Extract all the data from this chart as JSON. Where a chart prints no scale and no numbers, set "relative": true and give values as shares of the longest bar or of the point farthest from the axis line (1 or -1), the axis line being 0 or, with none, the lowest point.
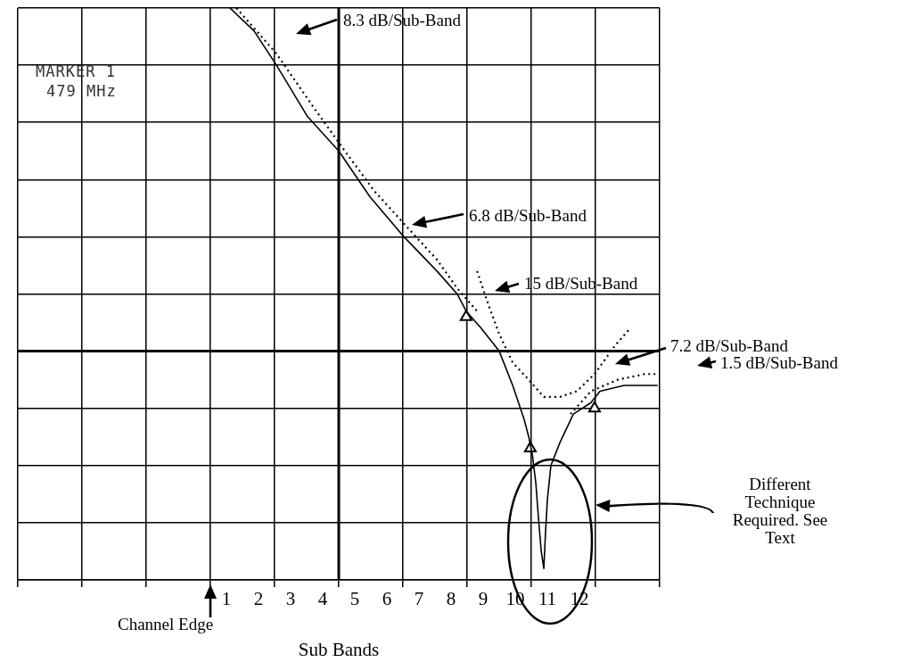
{
  "chart_data": {
    "type": "line",
    "relative": true,
    "xlabel": "Sub Bands",
    "xlim": [
      -6,
      14
    ],
    "xticks": [
      {
        "value": -6,
        "label": null
      },
      {
        "value": -4,
        "label": null
      },
      {
        "value": -2,
        "label": null
      },
      {
        "value": 0,
        "label": null
      },
      {
        "value": 0.5,
        "label": "1"
      },
      {
        "value": 1.5,
        "label": "2"
      },
      {
        "value": 2,
        "label": null
      },
      {
        "value": 2.5,
        "label": "3"
      },
      {
        "value": 3.5,
        "label": "4"
      },
      {
        "value": 4,
        "label": null
      },
      {
        "value": 4.5,
        "label": "5"
      },
      {
        "value": 5.5,
        "label": "6"
      },
      {
        "value": 6,
        "label": null
      },
      {
        "value": 6.5,
        "label": "7"
      },
      {
        "value": 7.5,
        "label": "8"
      },
      {
        "value": 8,
        "label": null
      },
      {
        "value": 8.5,
        "label": "9"
      },
      {
        "value": 9.5,
        "label": "10"
      },
      {
        "value": 10,
        "label": null
      },
      {
        "value": 10.5,
        "label": "11"
      },
      {
        "value": 11.5,
        "label": "12"
      },
      {
        "value": 12,
        "label": null
      },
      {
        "value": 14,
        "label": null
      }
    ],
    "tick_labels": "x",
    "grid": true,
    "legend": false,
    "series": [
      {
        "type": "line",
        "color": "#000000",
        "line_style": "solid",
        "marker": "none",
        "x": [
          0.61,
          1.36,
          2.06,
          3.03,
          4.0,
          4.97,
          6.03,
          7.06,
          7.69,
          7.97,
          8.44,
          9.0,
          9.42,
          9.78,
          9.92,
          10.03,
          10.14,
          10.22,
          10.31,
          10.39,
          10.44,
          10.5,
          10.61,
          10.89,
          11.31,
          11.86,
          12.14,
          12.89,
          13.94
        ],
        "values": [
          1.0,
          0.96,
          0.9,
          0.81,
          0.75,
          0.67,
          0.6,
          0.54,
          0.5,
          0.47,
          0.44,
          0.4,
          0.34,
          0.28,
          0.25,
          0.22,
          0.17,
          0.11,
          0.05,
          0.02,
          0.08,
          0.14,
          0.2,
          0.24,
          0.29,
          0.31,
          0.33,
          0.34,
          0.34
        ]
      },
      {
        "type": "line",
        "color": "#000000",
        "line_style": "dotted",
        "marker": "none",
        "x": [
          0.81,
          2.06,
          3.17,
          4.19,
          5.11,
          6.08,
          7.06,
          7.69,
          8.31
        ],
        "values": [
          1.0,
          0.92,
          0.83,
          0.75,
          0.68,
          0.62,
          0.56,
          0.51,
          0.47
        ]
      },
      {
        "type": "line",
        "color": "#000000",
        "line_style": "dotted",
        "marker": "none",
        "x": [
          8.31,
          8.67,
          9.0,
          9.42,
          9.92,
          10.39,
          10.89,
          11.42,
          11.97,
          12.61,
          13.08
        ],
        "values": [
          0.54,
          0.48,
          0.43,
          0.38,
          0.35,
          0.32,
          0.32,
          0.33,
          0.36,
          0.41,
          0.44
        ]
      },
      {
        "type": "line",
        "color": "#000000",
        "line_style": "dotted",
        "marker": "none",
        "x": [
          11.22,
          11.86,
          12.69,
          13.53,
          14.0
        ],
        "values": [
          0.29,
          0.33,
          0.35,
          0.36,
          0.36
        ]
      },
      {
        "type": "scatter",
        "color": "#000000",
        "marker": "triangle",
        "x": [
          7.97,
          9.97,
          11.97
        ],
        "values": [
          0.46,
          0.23,
          0.3
        ]
      }
    ],
    "ref_lines": [
      {
        "axis": "x",
        "value": 4,
        "color": "#000000"
      },
      {
        "axis": "y",
        "value": 0.4,
        "color": "#000000"
      }
    ],
    "annotations": [
      "8.3 dB/Sub-Band",
      "6.8 dB/Sub-Band",
      "15 dB/Sub-Band",
      "7.2 dB/Sub-Band",
      "1.5 dB/Sub-Band",
      "Different Technique Required.  See Text",
      "Channel Edge",
      "MARKER 1",
      "479 MHz"
    ]
  }
}
